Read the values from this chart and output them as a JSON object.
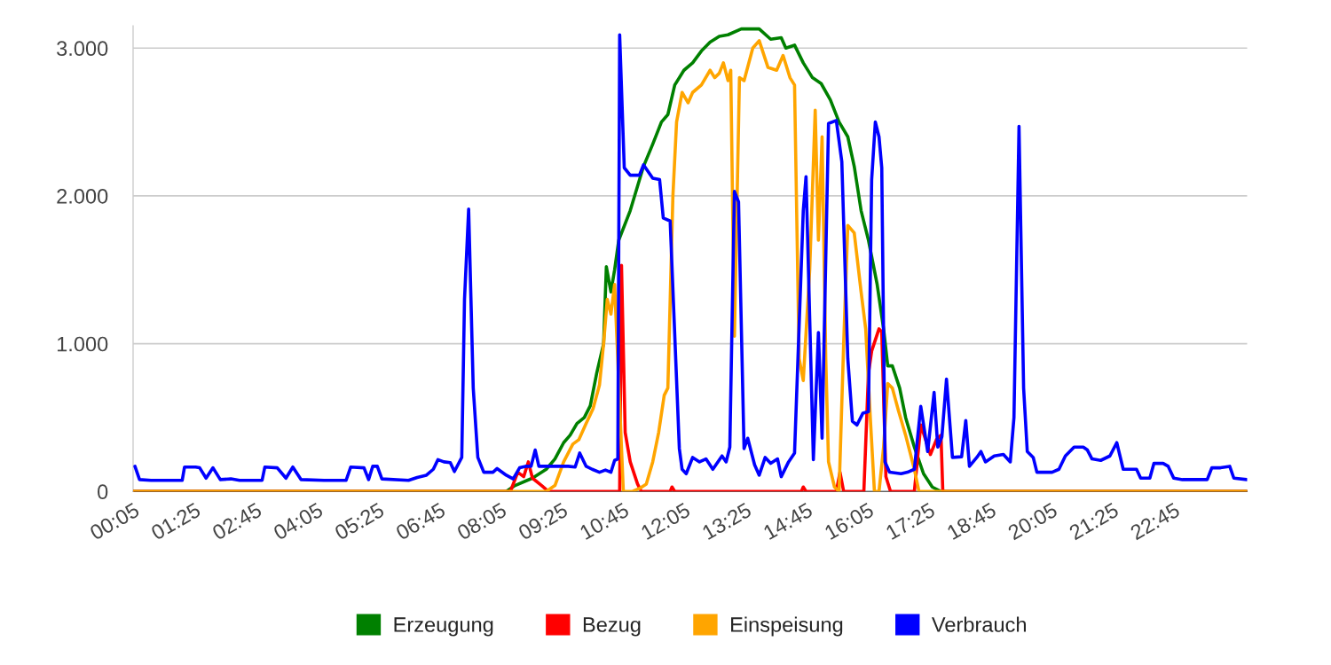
{
  "chart_data": {
    "type": "line",
    "xlim": [
      0.08,
      24.35
    ],
    "ylim": [
      0,
      3150
    ],
    "xticks": [
      {
        "value": 0.083,
        "label": "00:05"
      },
      {
        "value": 1.417,
        "label": "01:25"
      },
      {
        "value": 2.75,
        "label": "02:45"
      },
      {
        "value": 4.083,
        "label": "04:05"
      },
      {
        "value": 5.417,
        "label": "05:25"
      },
      {
        "value": 6.75,
        "label": "06:45"
      },
      {
        "value": 8.083,
        "label": "08:05"
      },
      {
        "value": 9.417,
        "label": "09:25"
      },
      {
        "value": 10.75,
        "label": "10:45"
      },
      {
        "value": 12.083,
        "label": "12:05"
      },
      {
        "value": 13.417,
        "label": "13:25"
      },
      {
        "value": 14.75,
        "label": "14:45"
      },
      {
        "value": 16.083,
        "label": "16:05"
      },
      {
        "value": 17.417,
        "label": "17:25"
      },
      {
        "value": 18.75,
        "label": "18:45"
      },
      {
        "value": 20.083,
        "label": "20:05"
      },
      {
        "value": 21.417,
        "label": "21:25"
      },
      {
        "value": 22.75,
        "label": "22:45"
      }
    ],
    "yticks": [
      0,
      {
        "value": 1000,
        "label": "1.000"
      },
      {
        "value": 2000,
        "label": "2.000"
      },
      {
        "value": 3000,
        "label": "3.000"
      }
    ],
    "grid": "y",
    "legend": "bottom",
    "marker": "none",
    "line_style": "solid",
    "series": [
      {
        "name": "Erzeugung",
        "color": "#008000",
        "x": [
          0.08,
          8.21,
          8.4,
          8.78,
          9.08,
          9.27,
          9.46,
          9.6,
          9.75,
          9.91,
          10.04,
          10.18,
          10.33,
          10.39,
          10.49,
          10.57,
          10.66,
          10.91,
          11.2,
          11.4,
          11.59,
          11.73,
          11.88,
          12.08,
          12.27,
          12.46,
          12.65,
          12.85,
          13.04,
          13.33,
          13.72,
          13.97,
          14.2,
          14.3,
          14.49,
          14.68,
          14.88,
          15.07,
          15.27,
          15.46,
          15.65,
          15.79,
          15.94,
          16.1,
          16.29,
          16.43,
          16.52,
          16.62,
          16.78,
          16.91,
          17.1,
          17.3,
          17.49,
          17.68,
          24.35
        ],
        "values": [
          0,
          0,
          40,
          90,
          150,
          220,
          330,
          380,
          460,
          500,
          580,
          800,
          1000,
          1520,
          1350,
          1500,
          1700,
          1900,
          2200,
          2350,
          2500,
          2550,
          2750,
          2850,
          2900,
          2980,
          3040,
          3080,
          3090,
          3130,
          3130,
          3060,
          3070,
          3000,
          3020,
          2900,
          2800,
          2760,
          2650,
          2500,
          2400,
          2200,
          1900,
          1700,
          1400,
          1100,
          850,
          850,
          700,
          500,
          300,
          120,
          30,
          0,
          0
        ]
      },
      {
        "name": "Bezug",
        "color": "#ff0000",
        "x": [
          0.08,
          8.3,
          8.46,
          8.59,
          8.69,
          8.78,
          8.98,
          9.13,
          10.68,
          10.72,
          10.8,
          10.91,
          11.07,
          11.15,
          11.78,
          11.82,
          11.88,
          14.64,
          14.68,
          14.74,
          15.4,
          15.48,
          15.56,
          16.0,
          16.1,
          16.17,
          16.33,
          16.39,
          16.48,
          16.58,
          17.1,
          17.24,
          17.45,
          17.58,
          17.68,
          17.72,
          24.35
        ],
        "values": [
          0,
          0,
          130,
          100,
          200,
          90,
          40,
          0,
          0,
          1530,
          400,
          200,
          50,
          0,
          0,
          30,
          0,
          0,
          30,
          0,
          0,
          130,
          0,
          0,
          800,
          950,
          1100,
          1080,
          100,
          0,
          0,
          450,
          250,
          350,
          380,
          0,
          0
        ]
      },
      {
        "name": "Einspeisung",
        "color": "#ffa500",
        "x": [
          0.08,
          9.08,
          9.27,
          9.46,
          9.66,
          9.79,
          9.95,
          10.1,
          10.24,
          10.33,
          10.41,
          10.49,
          10.57,
          10.76,
          10.96,
          11.11,
          11.26,
          11.4,
          11.53,
          11.65,
          11.73,
          11.84,
          11.92,
          12.04,
          12.17,
          12.27,
          12.46,
          12.65,
          12.75,
          12.85,
          12.94,
          13.04,
          13.1,
          13.18,
          13.29,
          13.39,
          13.58,
          13.72,
          13.91,
          14.1,
          14.24,
          14.39,
          14.49,
          14.59,
          14.68,
          14.82,
          14.94,
          15.01,
          15.09,
          15.17,
          15.23,
          15.36,
          15.46,
          15.56,
          15.65,
          15.79,
          15.94,
          16.04,
          16.14,
          16.23,
          16.33,
          16.43,
          16.52,
          16.62,
          16.75,
          16.91,
          17.1,
          17.2,
          24.35
        ],
        "values": [
          0,
          0,
          40,
          200,
          320,
          350,
          460,
          560,
          720,
          1000,
          1300,
          1200,
          1400,
          0,
          0,
          20,
          50,
          200,
          400,
          650,
          700,
          2000,
          2500,
          2700,
          2630,
          2700,
          2750,
          2850,
          2800,
          2830,
          2900,
          2780,
          2850,
          1050,
          2800,
          2780,
          3000,
          3050,
          2870,
          2850,
          2950,
          2800,
          2750,
          900,
          750,
          1500,
          2580,
          1700,
          2400,
          900,
          200,
          30,
          0,
          1000,
          1800,
          1750,
          1350,
          1100,
          500,
          0,
          0,
          300,
          730,
          700,
          550,
          380,
          150,
          0,
          0
        ]
      },
      {
        "name": "Verbrauch",
        "color": "#0000ff",
        "x": [
          0.12,
          0.22,
          0.47,
          1.15,
          1.2,
          1.44,
          1.53,
          1.67,
          1.82,
          1.98,
          2.21,
          2.4,
          2.89,
          2.95,
          3.22,
          3.41,
          3.56,
          3.74,
          4.24,
          4.72,
          4.82,
          5.11,
          5.21,
          5.3,
          5.4,
          5.5,
          6.08,
          6.27,
          6.47,
          6.62,
          6.72,
          6.85,
          6.99,
          7.08,
          7.24,
          7.3,
          7.39,
          7.49,
          7.59,
          7.72,
          7.92,
          8.01,
          8.21,
          8.36,
          8.5,
          8.63,
          8.75,
          8.84,
          8.92,
          9.17,
          9.56,
          9.71,
          9.81,
          9.95,
          10.08,
          10.24,
          10.37,
          10.49,
          10.57,
          10.64,
          10.68,
          10.78,
          10.91,
          11.11,
          11.2,
          11.4,
          11.55,
          11.63,
          11.78,
          11.98,
          12.04,
          12.13,
          12.27,
          12.42,
          12.56,
          12.71,
          12.91,
          13.0,
          13.08,
          13.18,
          13.27,
          13.39,
          13.47,
          13.62,
          13.72,
          13.85,
          13.97,
          14.12,
          14.2,
          14.36,
          14.49,
          14.68,
          14.74,
          14.9,
          15.01,
          15.09,
          15.23,
          15.4,
          15.52,
          15.65,
          15.75,
          15.85,
          15.98,
          16.1,
          16.17,
          16.25,
          16.33,
          16.39,
          16.46,
          16.56,
          16.81,
          16.95,
          17.1,
          17.24,
          17.39,
          17.53,
          17.61,
          17.7,
          17.8,
          17.93,
          18.13,
          18.22,
          18.3,
          18.46,
          18.55,
          18.65,
          18.84,
          19.04,
          19.19,
          19.27,
          19.38,
          19.48,
          19.56,
          19.69,
          19.77,
          20.1,
          20.25,
          20.39,
          20.58,
          20.78,
          20.87,
          20.97,
          21.16,
          21.36,
          21.51,
          21.65,
          21.94,
          22.03,
          22.23,
          22.32,
          22.52,
          22.63,
          22.75,
          22.94,
          23.48,
          23.58,
          23.77,
          23.97,
          24.06,
          24.34
        ],
        "values": [
          170,
          80,
          75,
          75,
          165,
          165,
          160,
          90,
          160,
          80,
          85,
          75,
          75,
          165,
          160,
          90,
          165,
          80,
          75,
          75,
          165,
          160,
          80,
          170,
          170,
          85,
          75,
          95,
          110,
          150,
          215,
          200,
          195,
          135,
          230,
          1300,
          1910,
          700,
          230,
          130,
          130,
          155,
          110,
          85,
          160,
          170,
          170,
          280,
          170,
          170,
          170,
          165,
          260,
          170,
          150,
          130,
          145,
          130,
          210,
          220,
          3090,
          2190,
          2140,
          2140,
          2210,
          2120,
          2110,
          1850,
          1830,
          290,
          150,
          120,
          230,
          200,
          220,
          150,
          240,
          200,
          300,
          2030,
          1960,
          290,
          360,
          180,
          110,
          230,
          190,
          220,
          100,
          200,
          260,
          1900,
          2130,
          215,
          1075,
          360,
          2490,
          2510,
          2230,
          900,
          475,
          450,
          530,
          540,
          2110,
          2500,
          2400,
          2190,
          200,
          130,
          120,
          130,
          150,
          575,
          270,
          670,
          300,
          370,
          760,
          230,
          235,
          480,
          170,
          230,
          270,
          200,
          240,
          250,
          200,
          500,
          2470,
          700,
          270,
          230,
          130,
          130,
          150,
          240,
          300,
          300,
          280,
          220,
          210,
          240,
          330,
          150,
          150,
          90,
          90,
          190,
          190,
          170,
          90,
          80,
          80,
          160,
          160,
          170,
          90,
          80
        ]
      }
    ]
  }
}
